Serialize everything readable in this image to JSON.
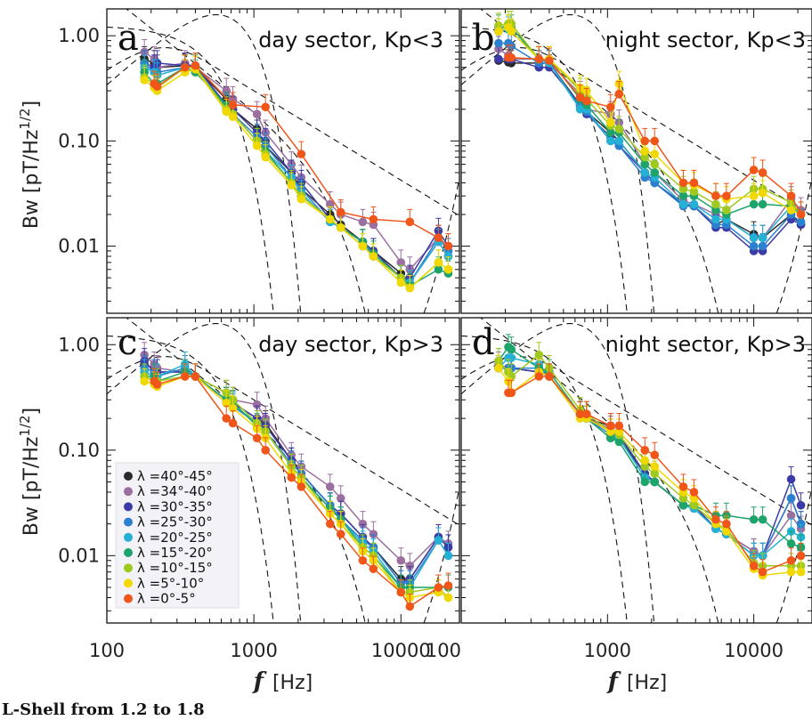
{
  "chart_data": {
    "type": "line",
    "footer": "L-Shell from 1.2 to 1.8",
    "xlabel_italic": "f",
    "xlabel_unit": "[Hz]",
    "ylabel": "Bw [pT/Hz",
    "ylabel_sup": "1/2",
    "ylabel_close": "]",
    "x_scale": "log",
    "y_scale": "log",
    "xlim": [
      100,
      25000
    ],
    "ylim": [
      0.0023,
      1.8
    ],
    "xticks": [
      {
        "v": 100,
        "label": "100"
      },
      {
        "v": 1000,
        "label": "1000"
      },
      {
        "v": 10000,
        "label": "10000"
      }
    ],
    "yticks": [
      {
        "v": 1,
        "label": "1.00"
      },
      {
        "v": 0.1,
        "label": "0.10"
      },
      {
        "v": 0.01,
        "label": "0.01"
      }
    ],
    "x": [
      180,
      210,
      220,
      340,
      400,
      650,
      720,
      1050,
      1200,
      1800,
      2100,
      3300,
      3900,
      5500,
      6500,
      10000,
      11500,
      18000,
      21000
    ],
    "series_meta": [
      {
        "name": "λ =40°-45°",
        "color": "#2a2a2a"
      },
      {
        "name": "λ =34°-40°",
        "color": "#9b6fa0"
      },
      {
        "name": "λ =30°-35°",
        "color": "#3b3aa6"
      },
      {
        "name": "λ =25°-30°",
        "color": "#2b80cf"
      },
      {
        "name": "λ =20°-25°",
        "color": "#25b0d5"
      },
      {
        "name": "λ =15°-20°",
        "color": "#1ea36a"
      },
      {
        "name": "λ =10°-15°",
        "color": "#a0c920"
      },
      {
        "name": "λ =5°-10°",
        "color": "#f0d800"
      },
      {
        "name": "λ =0°-5°",
        "color": "#f0561a"
      }
    ],
    "panels": [
      {
        "letter": "a",
        "title": "day sector, Kp<3",
        "series": [
          {
            "name": "λ =40°-45°",
            "values": [
              0.6,
              0.55,
              0.5,
              0.52,
              0.5,
              0.25,
              0.2,
              0.13,
              0.09,
              0.05,
              0.035,
              0.02,
              0.016,
              0.011,
              0.009,
              0.0055,
              0.0045,
              0.011,
              0.008
            ]
          },
          {
            "name": "λ =34°-40°",
            "values": [
              0.7,
              0.6,
              0.5,
              0.55,
              0.5,
              0.3,
              0.25,
              0.18,
              0.12,
              0.06,
              0.045,
              0.025,
              0.02,
              0.017,
              0.016,
              0.007,
              0.006,
              0.012,
              0.009
            ]
          },
          {
            "name": "λ =30°-35°",
            "values": [
              0.55,
              0.5,
              0.55,
              0.52,
              0.52,
              0.22,
              0.2,
              0.12,
              0.1,
              0.05,
              0.04,
              0.018,
              0.015,
              0.011,
              0.009,
              0.005,
              0.005,
              0.014,
              0.01
            ]
          },
          {
            "name": "λ =25°-30°",
            "values": [
              0.55,
              0.45,
              0.45,
              0.5,
              0.5,
              0.21,
              0.18,
              0.11,
              0.09,
              0.045,
              0.035,
              0.017,
              0.015,
              0.011,
              0.008,
              0.005,
              0.0045,
              0.012,
              0.009
            ]
          },
          {
            "name": "λ =20°-25°",
            "values": [
              0.5,
              0.45,
              0.42,
              0.5,
              0.5,
              0.2,
              0.18,
              0.1,
              0.08,
              0.045,
              0.032,
              0.017,
              0.015,
              0.01,
              0.008,
              0.005,
              0.0045,
              0.011,
              0.008
            ]
          },
          {
            "name": "λ =15°-20°",
            "values": [
              0.45,
              0.35,
              0.35,
              0.5,
              0.45,
              0.22,
              0.18,
              0.1,
              0.08,
              0.04,
              0.03,
              0.018,
              0.015,
              0.011,
              0.0085,
              0.005,
              0.0042,
              0.006,
              0.0055
            ]
          },
          {
            "name": "λ =10°-15°",
            "values": [
              0.4,
              0.35,
              0.32,
              0.5,
              0.5,
              0.2,
              0.18,
              0.1,
              0.075,
              0.04,
              0.03,
              0.018,
              0.015,
              0.01,
              0.008,
              0.005,
              0.004,
              0.007,
              0.006
            ]
          },
          {
            "name": "λ =5°-10°",
            "values": [
              0.38,
              0.32,
              0.3,
              0.45,
              0.48,
              0.19,
              0.17,
              0.09,
              0.07,
              0.038,
              0.028,
              0.018,
              0.015,
              0.01,
              0.008,
              0.0045,
              0.004,
              0.007,
              0.006
            ]
          },
          {
            "name": "λ =0°-5°",
            "values": [
              null,
              0.35,
              0.33,
              0.5,
              0.52,
              null,
              0.22,
              null,
              0.21,
              null,
              0.075,
              null,
              0.021,
              null,
              0.018,
              null,
              0.017,
              0.012,
              0.01
            ]
          }
        ]
      },
      {
        "letter": "b",
        "title": "night sector, Kp<3",
        "series": [
          {
            "name": "λ =40°-45°",
            "values": [
              0.58,
              0.56,
              0.55,
              0.55,
              0.55,
              0.22,
              0.19,
              0.12,
              0.1,
              0.05,
              0.04,
              0.025,
              0.024,
              0.016,
              0.018,
              0.013,
              0.012,
              0.02,
              0.016
            ]
          },
          {
            "name": "λ =34°-40°",
            "values": [
              0.75,
              0.65,
              0.6,
              0.6,
              0.55,
              0.28,
              0.2,
              0.18,
              0.15,
              0.06,
              0.05,
              0.027,
              0.025,
              0.02,
              0.018,
              0.012,
              0.012,
              0.028,
              0.022
            ]
          },
          {
            "name": "λ =30°-35°",
            "values": [
              0.6,
              0.6,
              0.6,
              0.5,
              0.5,
              0.22,
              0.18,
              0.11,
              0.09,
              0.05,
              0.04,
              0.025,
              0.024,
              0.015,
              0.015,
              0.009,
              0.009,
              0.018,
              0.016
            ]
          },
          {
            "name": "λ =25°-30°",
            "values": [
              0.85,
              0.85,
              0.8,
              0.55,
              0.55,
              0.21,
              0.19,
              0.1,
              0.09,
              0.045,
              0.04,
              0.024,
              0.024,
              0.016,
              0.016,
              0.01,
              0.01,
              0.02,
              0.017
            ]
          },
          {
            "name": "λ =20°-25°",
            "values": [
              1.1,
              1.15,
              1.1,
              0.6,
              0.55,
              0.2,
              0.2,
              0.1,
              0.1,
              0.05,
              0.045,
              0.025,
              0.025,
              0.018,
              0.018,
              0.012,
              0.012,
              0.024,
              0.02
            ]
          },
          {
            "name": "λ =15°-20°",
            "values": [
              1.2,
              1.2,
              1.2,
              0.6,
              0.6,
              0.25,
              0.22,
              0.12,
              0.12,
              0.06,
              0.05,
              0.03,
              0.03,
              0.022,
              0.02,
              0.025,
              0.025,
              0.024,
              0.02
            ]
          },
          {
            "name": "λ =10°-15°",
            "values": [
              1.25,
              1.3,
              1.3,
              0.6,
              0.6,
              0.3,
              0.25,
              0.14,
              0.13,
              0.07,
              0.06,
              0.035,
              0.033,
              0.025,
              0.022,
              0.035,
              0.035,
              0.026,
              0.02
            ]
          },
          {
            "name": "λ =5°-10°",
            "values": [
              1.1,
              1.2,
              1.1,
              0.6,
              0.6,
              0.32,
              0.3,
              0.15,
              0.35,
              0.08,
              0.075,
              0.04,
              0.038,
              0.03,
              0.028,
              0.03,
              0.032,
              0.022,
              0.02
            ]
          },
          {
            "name": "λ =0°-5°",
            "values": [
              null,
              0.62,
              0.62,
              0.6,
              0.58,
              0.26,
              0.24,
              0.21,
              0.28,
              0.1,
              0.1,
              0.04,
              0.04,
              0.03,
              0.03,
              0.053,
              0.05,
              0.03,
              0.02
            ]
          }
        ]
      },
      {
        "letter": "c",
        "title": "day sector, Kp>3",
        "series": [
          {
            "name": "λ =40°-45°",
            "values": [
              0.65,
              0.6,
              0.55,
              0.55,
              0.5,
              0.3,
              0.28,
              0.2,
              0.18,
              0.08,
              0.06,
              0.03,
              0.025,
              0.015,
              0.012,
              0.006,
              0.006,
              0.015,
              0.012
            ]
          },
          {
            "name": "λ =34°-40°",
            "values": [
              0.8,
              0.65,
              0.6,
              0.55,
              0.5,
              0.35,
              0.3,
              0.27,
              0.2,
              0.09,
              0.07,
              0.045,
              0.035,
              0.02,
              0.016,
              0.009,
              0.008,
              0.015,
              0.013
            ]
          },
          {
            "name": "λ =30°-35°",
            "values": [
              0.7,
              0.55,
              0.55,
              0.55,
              0.5,
              0.3,
              0.28,
              0.2,
              0.17,
              0.08,
              0.06,
              0.03,
              0.025,
              0.015,
              0.012,
              0.0055,
              0.006,
              0.015,
              0.012
            ]
          },
          {
            "name": "λ =25°-30°",
            "values": [
              0.6,
              0.55,
              0.5,
              0.6,
              0.5,
              0.28,
              0.26,
              0.18,
              0.15,
              0.075,
              0.06,
              0.03,
              0.022,
              0.014,
              0.012,
              0.0055,
              0.0055,
              0.014,
              0.01
            ]
          },
          {
            "name": "λ =20°-25°",
            "values": [
              0.55,
              0.5,
              0.5,
              0.65,
              0.5,
              0.3,
              0.27,
              0.18,
              0.15,
              0.07,
              0.055,
              0.028,
              0.022,
              0.013,
              0.011,
              0.005,
              0.005,
              0.014,
              0.01
            ]
          },
          {
            "name": "λ =15°-20°",
            "values": [
              0.5,
              0.5,
              0.45,
              0.55,
              0.5,
              0.3,
              0.28,
              0.17,
              0.15,
              0.07,
              0.055,
              0.028,
              0.022,
              0.012,
              0.01,
              0.005,
              0.005,
              0.005,
              0.005
            ]
          },
          {
            "name": "λ =10°-15°",
            "values": [
              0.5,
              0.45,
              0.45,
              0.5,
              0.5,
              0.35,
              0.3,
              0.18,
              0.15,
              0.07,
              0.055,
              0.025,
              0.02,
              0.012,
              0.01,
              0.0045,
              0.0045,
              0.005,
              0.004
            ]
          },
          {
            "name": "λ =5°-10°",
            "values": [
              0.45,
              0.42,
              0.4,
              0.5,
              0.5,
              0.28,
              0.25,
              0.16,
              0.13,
              0.06,
              0.05,
              0.025,
              0.02,
              0.011,
              0.009,
              0.0045,
              0.004,
              0.0045,
              0.004
            ]
          },
          {
            "name": "λ =0°-5°",
            "values": [
              null,
              0.45,
              0.42,
              0.5,
              0.5,
              0.2,
              0.18,
              0.13,
              0.1,
              0.055,
              0.045,
              0.02,
              0.016,
              0.009,
              0.0075,
              0.0045,
              0.0033,
              0.005,
              0.0052
            ]
          }
        ]
      },
      {
        "letter": "d",
        "title": "night sector, Kp>3",
        "series": [
          {
            "name": "λ =40°-45°",
            "values": [
              0.6,
              0.6,
              0.6,
              0.55,
              0.5,
              0.22,
              0.2,
              0.17,
              0.13,
              0.06,
              0.05,
              0.03,
              0.03,
              0.018,
              0.016,
              0.011,
              0.01,
              0.035,
              0.02
            ]
          },
          {
            "name": "λ =34°-40°",
            "values": [
              0.65,
              0.6,
              0.6,
              0.55,
              0.5,
              0.22,
              0.2,
              0.16,
              0.14,
              0.06,
              0.05,
              0.03,
              0.03,
              0.018,
              0.016,
              0.011,
              0.01,
              0.024,
              0.018
            ]
          },
          {
            "name": "λ =30°-35°",
            "values": [
              0.6,
              0.6,
              0.6,
              0.55,
              0.5,
              0.22,
              0.2,
              0.15,
              0.14,
              0.06,
              0.05,
              0.03,
              0.03,
              0.018,
              0.016,
              0.01,
              0.01,
              0.053,
              0.03
            ]
          },
          {
            "name": "λ =25°-30°",
            "values": [
              0.6,
              0.6,
              0.6,
              0.6,
              0.5,
              0.22,
              0.2,
              0.14,
              0.13,
              0.055,
              0.05,
              0.03,
              0.028,
              0.018,
              0.016,
              0.01,
              0.01,
              0.035,
              0.02
            ]
          },
          {
            "name": "λ =20°-25°",
            "values": [
              0.6,
              0.75,
              0.75,
              0.65,
              0.5,
              0.22,
              0.2,
              0.13,
              0.13,
              0.055,
              0.05,
              0.03,
              0.028,
              0.018,
              0.016,
              0.01,
              0.01,
              0.017,
              0.015
            ]
          },
          {
            "name": "λ =15°-20°",
            "values": [
              0.7,
              0.95,
              0.9,
              0.6,
              0.55,
              0.22,
              0.2,
              0.13,
              0.12,
              0.05,
              0.05,
              0.03,
              0.03,
              0.024,
              0.024,
              0.022,
              0.022,
              0.013,
              0.012
            ]
          },
          {
            "name": "λ =10°-15°",
            "values": [
              0.7,
              0.55,
              0.5,
              0.8,
              0.6,
              0.24,
              0.22,
              0.15,
              0.14,
              0.07,
              0.06,
              0.035,
              0.03,
              0.02,
              0.018,
              0.0085,
              0.008,
              0.008,
              0.008
            ]
          },
          {
            "name": "λ =5°-10°",
            "values": [
              0.6,
              0.45,
              0.35,
              0.55,
              0.5,
              0.2,
              0.2,
              0.15,
              0.15,
              0.08,
              0.07,
              0.04,
              0.035,
              0.02,
              0.017,
              0.0075,
              0.0065,
              0.007,
              0.007
            ]
          },
          {
            "name": "λ =0°-5°",
            "values": [
              null,
              0.35,
              0.35,
              0.5,
              0.5,
              0.22,
              0.22,
              0.17,
              0.17,
              0.1,
              0.09,
              0.045,
              0.04,
              0.022,
              0.02,
              0.008,
              0.007,
              0.009,
              0.01
            ]
          }
        ]
      }
    ]
  }
}
